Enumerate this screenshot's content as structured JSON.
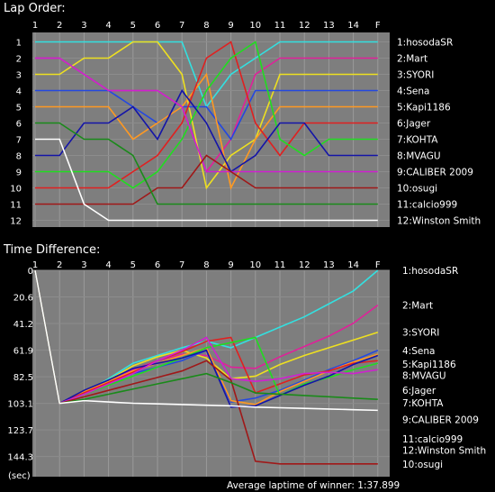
{
  "title_lap_order": "Lap Order:",
  "title_time_diff": "Time Difference:",
  "footer": "Average laptime of winner: 1:37.899",
  "time_unit": "(sec)",
  "lap_labels": [
    "1",
    "2",
    "3",
    "4",
    "5",
    "6",
    "7",
    "8",
    "9",
    "10",
    "11",
    "12",
    "13",
    "14",
    "F"
  ],
  "position_labels": [
    "1",
    "2",
    "3",
    "4",
    "5",
    "6",
    "7",
    "8",
    "9",
    "10",
    "11",
    "12"
  ],
  "time_tick_labels": [
    "0",
    "20.6",
    "41.2",
    "61.9",
    "82.5",
    "103.1",
    "123.7",
    "144.3"
  ],
  "chart_data": [
    {
      "type": "line",
      "title": "Lap Order:",
      "x": [
        "1",
        "2",
        "3",
        "4",
        "5",
        "6",
        "7",
        "8",
        "9",
        "10",
        "11",
        "12",
        "13",
        "14",
        "F"
      ],
      "ylim": [
        1,
        12
      ],
      "y_inverted": true,
      "series": [
        {
          "name": "1:hosodaSR",
          "color": "#33e0e0",
          "values": [
            1,
            1,
            1,
            1,
            1,
            1,
            1,
            5,
            3,
            2,
            1,
            1,
            1,
            1,
            1
          ],
          "label": "1:hosodaSR"
        },
        {
          "name": "2:Mart",
          "color": "#e0209a",
          "values": [
            2,
            2,
            3,
            4,
            4,
            4,
            5,
            9,
            7,
            3,
            2,
            2,
            2,
            2,
            2
          ],
          "label": "2:Mart"
        },
        {
          "name": "3:SYORI",
          "color": "#eee020",
          "values": [
            3,
            3,
            2,
            2,
            1,
            1,
            3,
            10,
            8,
            7,
            3,
            3,
            3,
            3,
            3
          ],
          "label": "3:SYORI"
        },
        {
          "name": "4:Sena",
          "color": "#2448e0",
          "values": [
            4,
            4,
            4,
            4,
            5,
            6,
            5,
            5,
            7,
            4,
            4,
            4,
            4,
            4,
            4
          ],
          "label": "4:Sena"
        },
        {
          "name": "5:Kapi1186",
          "color": "#ff9922",
          "values": [
            5,
            5,
            5,
            5,
            7,
            6,
            5,
            3,
            10,
            7,
            5,
            5,
            5,
            5,
            5
          ],
          "label": "5:Kapi1186"
        },
        {
          "name": "6:Jager",
          "color": "#e02020",
          "values": [
            10,
            10,
            10,
            10,
            9,
            8,
            6,
            2,
            1,
            6,
            8,
            6,
            6,
            6,
            6
          ],
          "label": "6:Jager"
        },
        {
          "name": "7:KOHTA",
          "color": "#20dd20",
          "values": [
            9,
            9,
            9,
            9,
            10,
            9,
            7,
            4,
            2,
            1,
            7,
            8,
            7,
            7,
            7
          ],
          "label": "7:KOHTA"
        },
        {
          "name": "8:MVAGU",
          "color": "#1414a8",
          "values": [
            8,
            8,
            6,
            6,
            5,
            7,
            4,
            6,
            9,
            8,
            6,
            6,
            8,
            8,
            8
          ],
          "label": "8:MVAGU"
        },
        {
          "name": "9:CALIBER 2009",
          "color": "#d020d0",
          "values": [
            2,
            2,
            3,
            4,
            4,
            4,
            5,
            9,
            9,
            9,
            9,
            9,
            9,
            9,
            9
          ],
          "label": "9:CALIBER 2009"
        },
        {
          "name": "10:osugi",
          "color": "#a01818",
          "values": [
            11,
            11,
            11,
            11,
            11,
            10,
            10,
            8,
            9,
            10,
            10,
            10,
            10,
            10,
            10
          ],
          "label": "10:osugi"
        },
        {
          "name": "11:calcio999",
          "color": "#1a8a1a",
          "values": [
            6,
            6,
            7,
            7,
            8,
            11,
            11,
            11,
            11,
            11,
            11,
            11,
            11,
            11,
            11
          ],
          "label": "11:calcio999"
        },
        {
          "name": "12:Winston Smith",
          "color": "#ffffff",
          "values": [
            7,
            7,
            11,
            12,
            12,
            12,
            12,
            12,
            12,
            12,
            12,
            12,
            12,
            12,
            12
          ],
          "label": "12:Winston Smith"
        }
      ]
    },
    {
      "type": "line",
      "title": "Time Difference:",
      "ylabel": "(sec)",
      "x": [
        "1",
        "2",
        "3",
        "4",
        "5",
        "6",
        "7",
        "8",
        "9",
        "10",
        "11",
        "12",
        "13",
        "14",
        "F"
      ],
      "ylim": [
        0,
        160
      ],
      "y_inverted": true,
      "series": [
        {
          "name": "1:hosodaSR",
          "color": "#33e0e0",
          "values": [
            0,
            103.1,
            95,
            84,
            72,
            66,
            60,
            55,
            60,
            52,
            44,
            36,
            26,
            16,
            0
          ]
        },
        {
          "name": "2:Mart",
          "color": "#e0209a",
          "values": [
            0,
            103.1,
            96,
            86,
            77,
            70,
            65,
            66,
            75,
            76,
            67,
            59,
            51,
            41,
            27
          ]
        },
        {
          "name": "3:SYORI",
          "color": "#eee020",
          "values": [
            0,
            103.1,
            94,
            85,
            74,
            67,
            62,
            68,
            84,
            82,
            73,
            66,
            60,
            54,
            48
          ]
        },
        {
          "name": "4:Sena",
          "color": "#2448e0",
          "values": [
            0,
            103.1,
            95,
            88,
            80,
            75,
            70,
            62,
            102,
            99,
            93,
            85,
            77,
            70,
            62
          ]
        },
        {
          "name": "5:Kapi1186",
          "color": "#ff9922",
          "values": [
            0,
            103.1,
            94,
            86,
            78,
            72,
            66,
            60,
            101,
            104,
            94,
            86,
            78,
            71,
            65
          ]
        },
        {
          "name": "6:Jager",
          "color": "#e02020",
          "values": [
            0,
            103.1,
            95,
            87,
            79,
            70,
            63,
            55,
            52,
            95,
            88,
            81,
            78,
            72,
            70
          ]
        },
        {
          "name": "7:KOHTA",
          "color": "#20dd20",
          "values": [
            0,
            103.1,
            96,
            89,
            82,
            75,
            68,
            60,
            56,
            52,
            97,
            88,
            83,
            77,
            72
          ]
        },
        {
          "name": "8:MVAGU",
          "color": "#1414a8",
          "values": [
            0,
            103.1,
            93,
            85,
            76,
            72,
            68,
            62,
            106,
            105,
            97,
            89,
            82,
            73,
            66
          ]
        },
        {
          "name": "9:CALIBER 2009",
          "color": "#d020d0",
          "values": [
            0,
            103.1,
            96,
            88,
            80,
            70,
            62,
            52,
            84,
            86,
            84,
            80,
            79,
            80,
            77
          ]
        },
        {
          "name": "10:osugi",
          "color": "#a01818",
          "values": [
            0,
            103.1,
            98,
            93,
            88,
            83,
            78,
            70,
            85,
            148,
            150,
            150,
            150,
            150,
            150
          ]
        },
        {
          "name": "11:calcio999",
          "color": "#1a8a1a",
          "values": [
            0,
            103.1,
            100,
            96,
            92,
            88,
            84,
            80,
            87,
            95,
            96,
            97,
            98,
            99,
            100
          ]
        },
        {
          "name": "12:Winston Smith",
          "color": "#ffffff",
          "values": [
            0,
            103.1,
            101,
            102,
            103,
            103.5,
            104,
            104.5,
            105,
            106,
            106.5,
            107,
            107.5,
            108,
            108.5
          ]
        }
      ]
    }
  ]
}
